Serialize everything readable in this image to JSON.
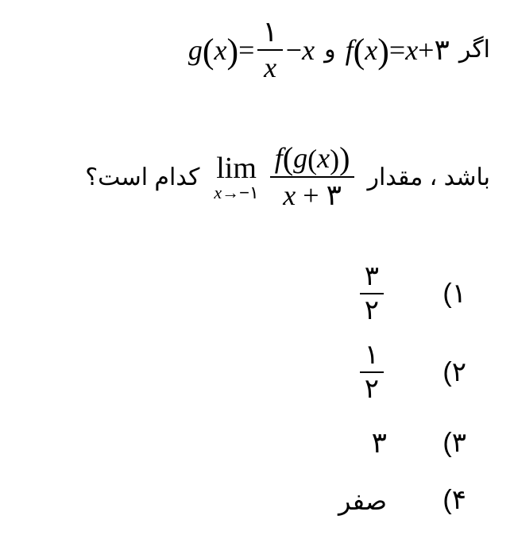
{
  "colors": {
    "text": "#000000",
    "background": "#ffffff",
    "fraction_bar": "#000000"
  },
  "typography": {
    "persian_font": "Tahoma",
    "math_font": "Times New Roman",
    "base_persian_size_pt": 22,
    "base_math_size_pt": 27,
    "math_style": "italic"
  },
  "question": {
    "word_if": "اگر",
    "f_def": {
      "lhs_var": "f",
      "arg": "x",
      "rhs_left": "x",
      "op": "+",
      "rhs_right": "۳"
    },
    "word_and": "و",
    "g_def": {
      "lhs_var": "g",
      "arg": "x",
      "frac_num": "۱",
      "frac_den": "x",
      "op": "−",
      "tail": "x"
    },
    "word_bashad_meghdar": "باشد ، مقدار",
    "limit": {
      "lim_text": "lim",
      "sub_var": "x",
      "arrow": "→",
      "sub_to": "−۱",
      "numerator_outer": "f",
      "numerator_inner": "g",
      "numerator_arg": "x",
      "denominator_left": "x",
      "denominator_op": "+",
      "denominator_right": "۳"
    },
    "word_kodam_ast": "کدام است؟"
  },
  "options": [
    {
      "label": "۱)",
      "type": "fraction",
      "num": "۳",
      "den": "۲"
    },
    {
      "label": "۲)",
      "type": "fraction",
      "num": "۱",
      "den": "۲"
    },
    {
      "label": "۳)",
      "type": "plain",
      "value": "۳"
    },
    {
      "label": "۴)",
      "type": "word",
      "value": "صفر"
    }
  ]
}
